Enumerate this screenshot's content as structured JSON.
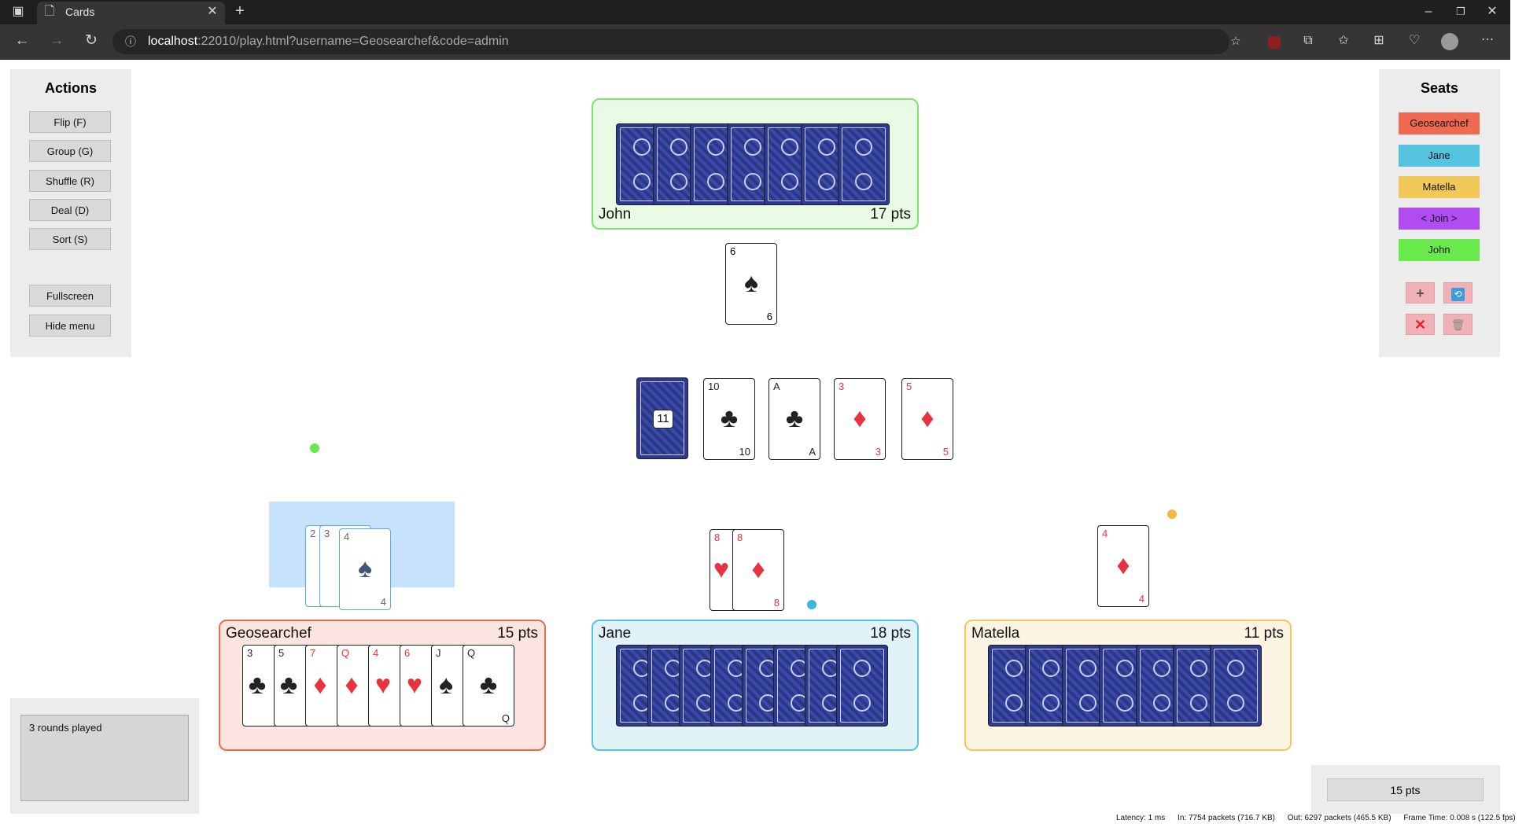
{
  "browser": {
    "tab_title": "Cards",
    "url_host": "localhost",
    "url_rest": ":22010/play.html?username=Geosearchef&code=admin"
  },
  "actions": {
    "title": "Actions",
    "buttons": [
      "Flip (F)",
      "Group (G)",
      "Shuffle (R)",
      "Deal (D)",
      "Sort (S)"
    ],
    "fullscreen": "Fullscreen",
    "hide_menu": "Hide menu"
  },
  "seats": {
    "title": "Seats",
    "list": [
      {
        "label": "Geosearchef",
        "color": "#ef6a50"
      },
      {
        "label": "Jane",
        "color": "#56c3e0"
      },
      {
        "label": "Matella",
        "color": "#f2c858"
      },
      {
        "label": "< Join >",
        "color": "#b04cf0"
      },
      {
        "label": "John",
        "color": "#68eb4a"
      }
    ],
    "icons": [
      "plus-icon",
      "refresh-icon",
      "cross-icon",
      "trash-icon"
    ]
  },
  "zones": {
    "john": {
      "name": "John",
      "pts": "17 pts",
      "border": "#7de36a",
      "bg": "#e9fbe5"
    },
    "geosearchef": {
      "name": "Geosearchef",
      "pts": "15 pts",
      "border": "#ef6a50",
      "bg": "#fce4e1"
    },
    "jane": {
      "name": "Jane",
      "pts": "18 pts",
      "border": "#56c3e0",
      "bg": "#e2f2f9"
    },
    "matella": {
      "name": "Matella",
      "pts": "11 pts",
      "border": "#f2c858",
      "bg": "#fdf5e4"
    }
  },
  "table": {
    "john_played": {
      "rank": "6",
      "suit": "♠",
      "color": "black"
    },
    "deck_count": "11",
    "row": [
      {
        "rank": "10",
        "suit": "♣",
        "color": "black"
      },
      {
        "rank": "A",
        "suit": "♣",
        "color": "black"
      },
      {
        "rank": "3",
        "suit": "♦",
        "color": "red"
      },
      {
        "rank": "5",
        "suit": "♦",
        "color": "red"
      }
    ],
    "geo_selected": [
      {
        "rank": "2"
      },
      {
        "rank": "3"
      },
      {
        "rank": "4",
        "suit": "♠",
        "color": "black"
      }
    ],
    "jane_played": [
      {
        "rank": "8",
        "suit": "♥",
        "color": "red"
      },
      {
        "rank": "8",
        "suit": "♦",
        "color": "red"
      }
    ],
    "matella_played": {
      "rank": "4",
      "suit": "♦",
      "color": "red"
    }
  },
  "geo_hand": [
    {
      "rank": "3",
      "suit": "♣",
      "color": "black"
    },
    {
      "rank": "5",
      "suit": "♣",
      "color": "black"
    },
    {
      "rank": "7",
      "suit": "♦",
      "color": "red"
    },
    {
      "rank": "Q",
      "suit": "♦",
      "color": "red"
    },
    {
      "rank": "4",
      "suit": "♥",
      "color": "red"
    },
    {
      "rank": "6",
      "suit": "♥",
      "color": "red"
    },
    {
      "rank": "J",
      "suit": "♠",
      "color": "black"
    },
    {
      "rank": "Q",
      "suit": "♣",
      "color": "black"
    }
  ],
  "chat_text": "3 rounds played",
  "score_button": "15 pts",
  "stats": {
    "latency": "Latency: 1 ms",
    "in": "In: 7754 packets (716.7 KB)",
    "out": "Out: 6297 packets (465.5 KB)",
    "frame": "Frame Time: 0.008 s  (122.5 fps)"
  },
  "cursors": [
    {
      "name": "john-cursor",
      "color": "#68eb4a"
    },
    {
      "name": "matella-cursor",
      "color": "#f2b840"
    },
    {
      "name": "jane-cursor",
      "color": "#3fb4e0"
    }
  ]
}
